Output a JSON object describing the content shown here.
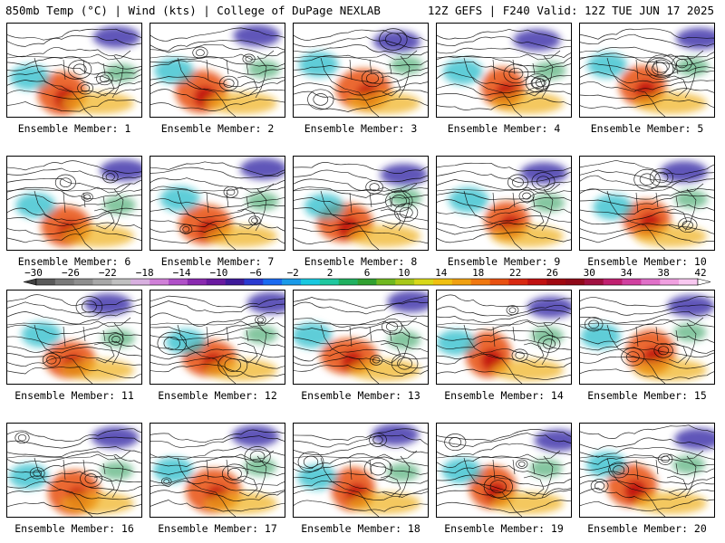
{
  "header": {
    "left": "850mb Temp (°C) | Wind (kts) | College of DuPage NEXLAB",
    "right": "12Z GEFS | F240 Valid: 12Z TUE JUN 17 2025"
  },
  "members": [
    {
      "label": "Ensemble Member: 1"
    },
    {
      "label": "Ensemble Member: 2"
    },
    {
      "label": "Ensemble Member: 3"
    },
    {
      "label": "Ensemble Member: 4"
    },
    {
      "label": "Ensemble Member: 5"
    },
    {
      "label": "Ensemble Member: 6"
    },
    {
      "label": "Ensemble Member: 7"
    },
    {
      "label": "Ensemble Member: 8"
    },
    {
      "label": "Ensemble Member: 9"
    },
    {
      "label": "Ensemble Member: 10"
    },
    {
      "label": "Ensemble Member: 11"
    },
    {
      "label": "Ensemble Member: 12"
    },
    {
      "label": "Ensemble Member: 13"
    },
    {
      "label": "Ensemble Member: 14"
    },
    {
      "label": "Ensemble Member: 15"
    },
    {
      "label": "Ensemble Member: 16"
    },
    {
      "label": "Ensemble Member: 17"
    },
    {
      "label": "Ensemble Member: 18"
    },
    {
      "label": "Ensemble Member: 19"
    },
    {
      "label": "Ensemble Member: 20"
    }
  ],
  "colorbar": {
    "ticks": [
      "-30",
      "-26",
      "-22",
      "-18",
      "-14",
      "-10",
      "-6",
      "-2",
      "2",
      "6",
      "10",
      "14",
      "18",
      "22",
      "26",
      "30",
      "34",
      "38",
      "42"
    ],
    "colors": [
      "#5a5a5a",
      "#7a7a7a",
      "#8e8e8e",
      "#a8a8a8",
      "#c0c0c0",
      "#d8b0e0",
      "#d080d8",
      "#b050c8",
      "#8a2ab0",
      "#6a1aa0",
      "#3e1a9a",
      "#2a3ad0",
      "#1a6af0",
      "#1a9ae8",
      "#18c8e0",
      "#20c8a0",
      "#20b060",
      "#30a030",
      "#70b820",
      "#a8c818",
      "#d8d818",
      "#f0c010",
      "#f0a010",
      "#f07810",
      "#e85010",
      "#d82810",
      "#c01010",
      "#a00810",
      "#900818",
      "#a01040",
      "#c02070",
      "#d040a0",
      "#e070c8",
      "#f0a0e0",
      "#f8c8f0"
    ],
    "left_color": "#404040",
    "right_color": "#ffffff"
  }
}
